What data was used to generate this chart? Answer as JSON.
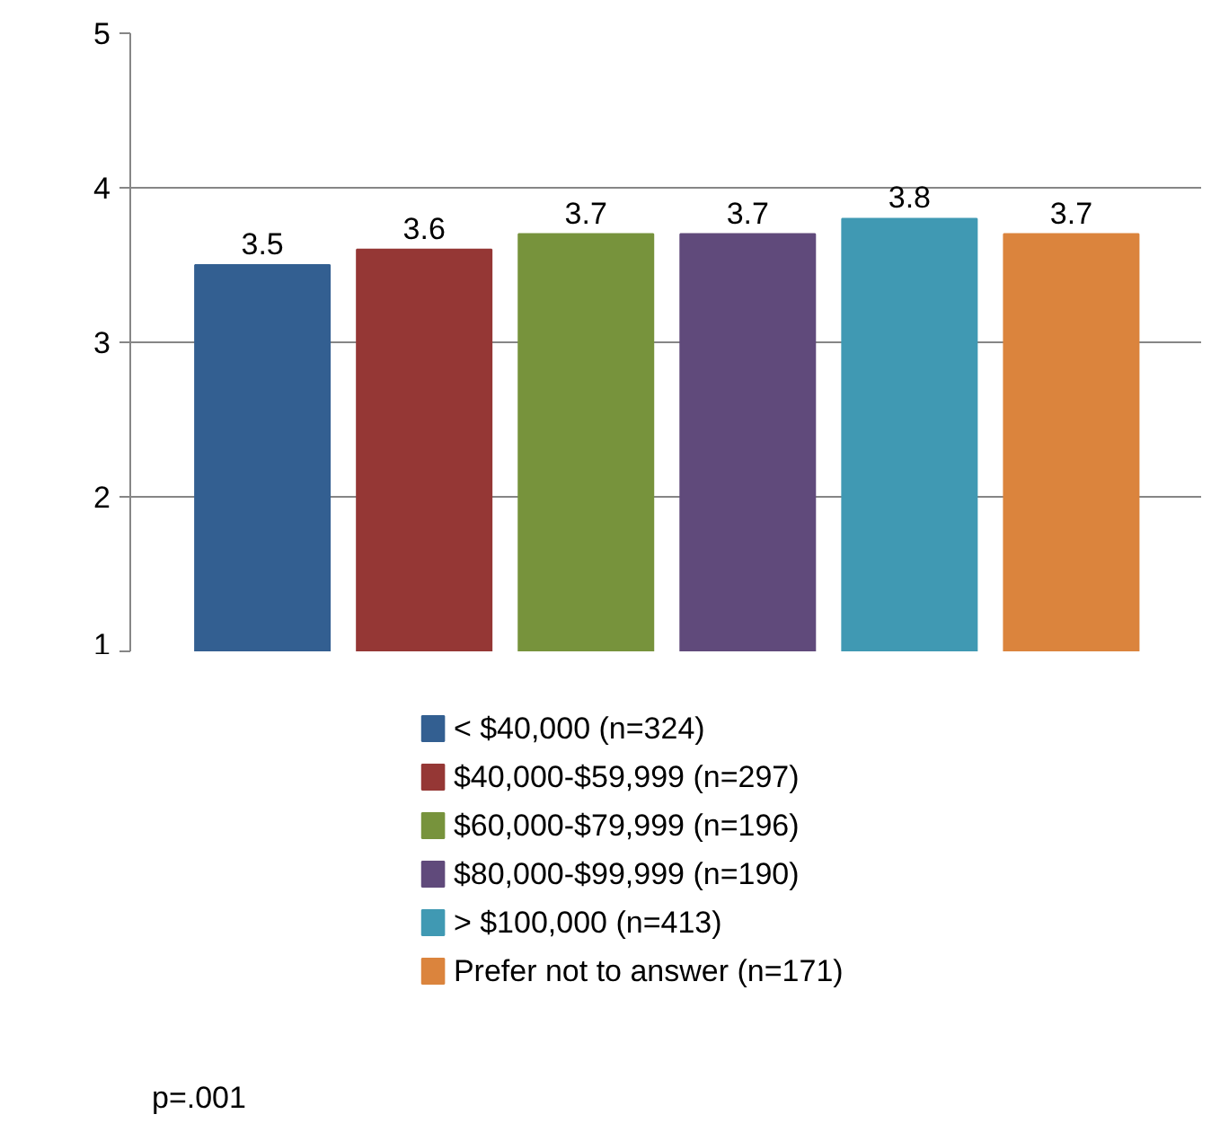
{
  "chart_data": {
    "type": "bar",
    "categories": [
      null
    ],
    "series": [
      {
        "name": "< $40,000 (n=324)",
        "color": "#335f91",
        "values": [
          3.5
        ]
      },
      {
        "name": "$40,000-$59,999 (n=297)",
        "color": "#953735",
        "values": [
          3.6
        ]
      },
      {
        "name": "$60,000-$79,999 (n=196)",
        "color": "#77933c",
        "values": [
          3.7
        ]
      },
      {
        "name": "$80,000-$99,999 (n=190)",
        "color": "#604a7b",
        "values": [
          3.7
        ]
      },
      {
        "name": "> $100,000 (n=413)",
        "color": "#4099b3",
        "values": [
          3.8
        ]
      },
      {
        "name": "Prefer not to answer (n=171)",
        "color": "#db843d",
        "values": [
          3.7
        ]
      }
    ],
    "ylim": [
      1,
      5
    ],
    "yticks": [
      1,
      2,
      3,
      4,
      5
    ],
    "grid": "y",
    "data_labels": true,
    "legend": "bottom",
    "annotations": [
      "p=.001"
    ]
  }
}
